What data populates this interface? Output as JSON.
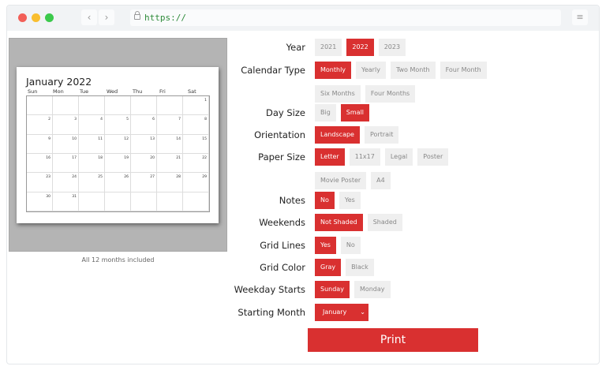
{
  "browser": {
    "url": "https://",
    "back_icon": "chevron-left",
    "forward_icon": "chevron-right",
    "menu_icon": "hamburger"
  },
  "colors": {
    "accent": "#d93030",
    "button_bg": "#efefef",
    "preview_bg": "#b4b4b4"
  },
  "preview": {
    "title": "January 2022",
    "weekdays": [
      "Sun",
      "Mon",
      "Tue",
      "Wed",
      "Thu",
      "Fri",
      "Sat"
    ],
    "weeks": [
      [
        "",
        "",
        "",
        "",
        "",
        "",
        "1"
      ],
      [
        "2",
        "3",
        "4",
        "5",
        "6",
        "7",
        "8"
      ],
      [
        "9",
        "10",
        "11",
        "12",
        "13",
        "14",
        "15"
      ],
      [
        "16",
        "17",
        "18",
        "19",
        "20",
        "21",
        "22"
      ],
      [
        "23",
        "24",
        "25",
        "26",
        "27",
        "28",
        "29"
      ],
      [
        "30",
        "31",
        "",
        "",
        "",
        "",
        ""
      ]
    ],
    "caption": "All 12 months included"
  },
  "options": [
    {
      "label": "Year",
      "choices": [
        "2021",
        "2022",
        "2023"
      ],
      "selected": "2022"
    },
    {
      "label": "Calendar Type",
      "choices": [
        "Monthly",
        "Yearly",
        "Two Month",
        "Four Month",
        "Six Months",
        "Four Months"
      ],
      "selected": "Monthly"
    },
    {
      "label": "Day Size",
      "choices": [
        "Big",
        "Small"
      ],
      "selected": "Small"
    },
    {
      "label": "Orientation",
      "choices": [
        "Landscape",
        "Portrait"
      ],
      "selected": "Landscape"
    },
    {
      "label": "Paper Size",
      "choices": [
        "Letter",
        "11x17",
        "Legal",
        "Poster",
        "Movie Poster",
        "A4"
      ],
      "selected": "Letter"
    },
    {
      "label": "Notes",
      "choices": [
        "No",
        "Yes"
      ],
      "selected": "No"
    },
    {
      "label": "Weekends",
      "choices": [
        "Not Shaded",
        "Shaded"
      ],
      "selected": "Not Shaded"
    },
    {
      "label": "Grid Lines",
      "choices": [
        "Yes",
        "No"
      ],
      "selected": "Yes"
    },
    {
      "label": "Grid Color",
      "choices": [
        "Gray",
        "Black"
      ],
      "selected": "Gray"
    },
    {
      "label": "Weekday Starts",
      "choices": [
        "Sunday",
        "Monday"
      ],
      "selected": "Sunday"
    }
  ],
  "starting_month": {
    "label": "Starting Month",
    "value": "January"
  },
  "print_label": "Print"
}
